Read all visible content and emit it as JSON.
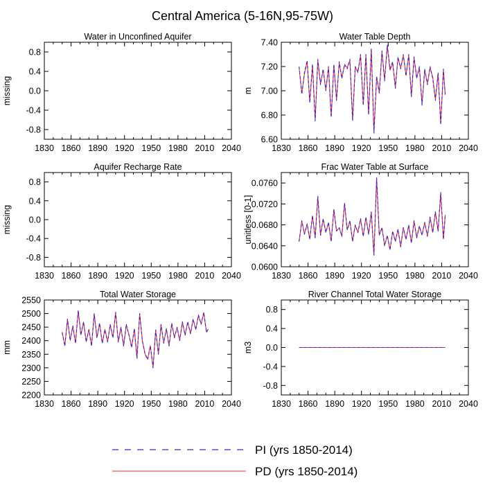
{
  "title": "Central America (5-16N,95-75W)",
  "colors": {
    "pi": "#2b2bd6",
    "pd": "#ff2a2a",
    "axis": "#000000"
  },
  "legend": {
    "pi_label": "PI (yrs 1850-2014)",
    "pd_label": "PD (yrs 1850-2014)"
  },
  "chart_data": [
    {
      "id": "p1",
      "type": "line",
      "title": "Water in Unconfined Aquifer",
      "ylabel": "missing",
      "xlabel": "",
      "xlim": [
        1830,
        2040
      ],
      "ylim": [
        -1.0,
        1.0
      ],
      "xticks": [
        "1830",
        "1860",
        "1890",
        "1920",
        "1950",
        "1980",
        "2010",
        "2040"
      ],
      "yticks": [
        "0.8",
        "0.4",
        "0.0",
        "-0.4",
        "-0.8"
      ],
      "series": []
    },
    {
      "id": "p2",
      "type": "line",
      "title": "Water Table Depth",
      "ylabel": "m",
      "xlabel": "",
      "xlim": [
        1830,
        2040
      ],
      "ylim": [
        6.6,
        7.4
      ],
      "xticks": [
        "1830",
        "1860",
        "1890",
        "1920",
        "1950",
        "1980",
        "2010",
        "2040"
      ],
      "yticks": [
        "7.40",
        "7.20",
        "7.00",
        "6.80",
        "6.60"
      ],
      "series": [
        {
          "name": "PI",
          "x": [
            1850,
            1853,
            1856,
            1859,
            1862,
            1865,
            1868,
            1871,
            1874,
            1877,
            1880,
            1883,
            1886,
            1889,
            1892,
            1895,
            1898,
            1901,
            1904,
            1907,
            1910,
            1913,
            1916,
            1919,
            1922,
            1925,
            1928,
            1931,
            1934,
            1937,
            1940,
            1943,
            1946,
            1949,
            1952,
            1955,
            1958,
            1961,
            1964,
            1967,
            1970,
            1973,
            1976,
            1979,
            1982,
            1985,
            1988,
            1991,
            1994,
            1997,
            2000,
            2003,
            2006,
            2009,
            2012,
            2014
          ],
          "values": [
            7.2,
            6.97,
            7.15,
            7.25,
            6.9,
            7.22,
            6.75,
            7.26,
            7.05,
            7.18,
            7.0,
            7.2,
            6.78,
            7.22,
            6.92,
            7.24,
            7.1,
            7.22,
            7.18,
            7.26,
            6.75,
            7.2,
            7.15,
            7.3,
            6.88,
            7.3,
            6.8,
            7.35,
            6.65,
            7.12,
            6.98,
            7.33,
            7.08,
            7.38,
            7.18,
            7.24,
            7.02,
            7.28,
            7.18,
            7.3,
            7.12,
            7.3,
            6.95,
            7.28,
            7.1,
            7.2,
            6.88,
            7.18,
            7.05,
            7.2,
            7.1,
            6.92,
            7.15,
            6.72,
            7.18,
            6.96
          ]
        },
        {
          "name": "PD",
          "x": [
            1850,
            1853,
            1856,
            1859,
            1862,
            1865,
            1868,
            1871,
            1874,
            1877,
            1880,
            1883,
            1886,
            1889,
            1892,
            1895,
            1898,
            1901,
            1904,
            1907,
            1910,
            1913,
            1916,
            1919,
            1922,
            1925,
            1928,
            1931,
            1934,
            1937,
            1940,
            1943,
            1946,
            1949,
            1952,
            1955,
            1958,
            1961,
            1964,
            1967,
            1970,
            1973,
            1976,
            1979,
            1982,
            1985,
            1988,
            1991,
            1994,
            1997,
            2000,
            2003,
            2006,
            2009,
            2012,
            2014
          ],
          "values": [
            7.19,
            6.98,
            7.14,
            7.24,
            6.91,
            7.21,
            6.76,
            7.25,
            7.06,
            7.17,
            7.01,
            7.19,
            6.79,
            7.21,
            6.93,
            7.23,
            7.11,
            7.21,
            7.19,
            7.25,
            6.76,
            7.19,
            7.16,
            7.29,
            6.89,
            7.29,
            6.81,
            7.34,
            6.66,
            7.11,
            6.99,
            7.32,
            7.09,
            7.37,
            7.17,
            7.23,
            7.03,
            7.27,
            7.19,
            7.29,
            7.13,
            7.29,
            6.96,
            7.27,
            7.11,
            7.19,
            6.89,
            7.17,
            7.06,
            7.19,
            7.11,
            6.93,
            7.14,
            6.73,
            7.17,
            6.97
          ]
        }
      ]
    },
    {
      "id": "p3",
      "type": "line",
      "title": "Aquifer Recharge Rate",
      "ylabel": "missing",
      "xlabel": "",
      "xlim": [
        1830,
        2040
      ],
      "ylim": [
        -1.0,
        1.0
      ],
      "xticks": [
        "1830",
        "1860",
        "1890",
        "1920",
        "1950",
        "1980",
        "2010",
        "2040"
      ],
      "yticks": [
        "0.8",
        "0.4",
        "0.0",
        "-0.4",
        "-0.8"
      ],
      "series": []
    },
    {
      "id": "p4",
      "type": "line",
      "title": "Frac Water Table at Surface",
      "ylabel": "unitless [0-1]",
      "xlabel": "",
      "xlim": [
        1830,
        2040
      ],
      "ylim": [
        0.06,
        0.078
      ],
      "xticks": [
        "1830",
        "1860",
        "1890",
        "1920",
        "1950",
        "1980",
        "2010",
        "2040"
      ],
      "yticks": [
        "0.0760",
        "0.0720",
        "0.0680",
        "0.0640",
        "0.0600"
      ],
      "series": [
        {
          "name": "PI",
          "x": [
            1850,
            1853,
            1856,
            1859,
            1862,
            1865,
            1868,
            1871,
            1874,
            1877,
            1880,
            1883,
            1886,
            1889,
            1892,
            1895,
            1898,
            1901,
            1904,
            1907,
            1910,
            1913,
            1916,
            1919,
            1922,
            1925,
            1928,
            1931,
            1934,
            1937,
            1940,
            1943,
            1946,
            1949,
            1952,
            1955,
            1958,
            1961,
            1964,
            1967,
            1970,
            1973,
            1976,
            1979,
            1982,
            1985,
            1988,
            1991,
            1994,
            1997,
            2000,
            2003,
            2006,
            2009,
            2012,
            2014
          ],
          "values": [
            0.0648,
            0.0688,
            0.0662,
            0.0682,
            0.0652,
            0.0698,
            0.0655,
            0.0735,
            0.066,
            0.0692,
            0.0665,
            0.0685,
            0.0648,
            0.071,
            0.0668,
            0.0675,
            0.0658,
            0.0722,
            0.067,
            0.0688,
            0.0648,
            0.068,
            0.0665,
            0.0692,
            0.0658,
            0.0695,
            0.0662,
            0.0705,
            0.0622,
            0.077,
            0.066,
            0.0675,
            0.064,
            0.066,
            0.0632,
            0.0668,
            0.0648,
            0.0672,
            0.0638,
            0.0675,
            0.0652,
            0.068,
            0.0645,
            0.0688,
            0.0655,
            0.0678,
            0.066,
            0.0685,
            0.0658,
            0.0695,
            0.0665,
            0.0705,
            0.0668,
            0.0742,
            0.0652,
            0.07
          ]
        },
        {
          "name": "PD",
          "x": [
            1850,
            1853,
            1856,
            1859,
            1862,
            1865,
            1868,
            1871,
            1874,
            1877,
            1880,
            1883,
            1886,
            1889,
            1892,
            1895,
            1898,
            1901,
            1904,
            1907,
            1910,
            1913,
            1916,
            1919,
            1922,
            1925,
            1928,
            1931,
            1934,
            1937,
            1940,
            1943,
            1946,
            1949,
            1952,
            1955,
            1958,
            1961,
            1964,
            1967,
            1970,
            1973,
            1976,
            1979,
            1982,
            1985,
            1988,
            1991,
            1994,
            1997,
            2000,
            2003,
            2006,
            2009,
            2012,
            2014
          ],
          "values": [
            0.0649,
            0.0687,
            0.0663,
            0.0681,
            0.0653,
            0.0697,
            0.0656,
            0.0733,
            0.0661,
            0.0691,
            0.0666,
            0.0684,
            0.0649,
            0.0709,
            0.0669,
            0.0674,
            0.0659,
            0.0721,
            0.0671,
            0.0687,
            0.0649,
            0.0679,
            0.0666,
            0.0691,
            0.0659,
            0.0694,
            0.0663,
            0.0704,
            0.0623,
            0.0768,
            0.0661,
            0.0674,
            0.0641,
            0.0659,
            0.0633,
            0.0667,
            0.0649,
            0.0671,
            0.0639,
            0.0674,
            0.0653,
            0.0679,
            0.0646,
            0.0687,
            0.0656,
            0.0677,
            0.0661,
            0.0684,
            0.0659,
            0.0694,
            0.0666,
            0.0704,
            0.0669,
            0.074,
            0.0653,
            0.0699
          ]
        }
      ]
    },
    {
      "id": "p5",
      "type": "line",
      "title": "Total Water Storage",
      "ylabel": "mm",
      "xlabel": "",
      "xlim": [
        1830,
        2040
      ],
      "ylim": [
        2200,
        2550
      ],
      "xticks": [
        "1830",
        "1860",
        "1890",
        "1920",
        "1950",
        "1980",
        "2010",
        "2040"
      ],
      "yticks": [
        "2550",
        "2500",
        "2450",
        "2400",
        "2350",
        "2300",
        "2250",
        "2200"
      ],
      "series": [
        {
          "name": "PI",
          "x": [
            1850,
            1853,
            1856,
            1859,
            1862,
            1865,
            1868,
            1871,
            1874,
            1877,
            1880,
            1883,
            1886,
            1889,
            1892,
            1895,
            1898,
            1901,
            1904,
            1907,
            1910,
            1913,
            1916,
            1919,
            1922,
            1925,
            1928,
            1931,
            1934,
            1937,
            1940,
            1943,
            1946,
            1949,
            1952,
            1955,
            1958,
            1961,
            1964,
            1967,
            1970,
            1973,
            1976,
            1979,
            1982,
            1985,
            1988,
            1991,
            1994,
            1997,
            2000,
            2003,
            2006,
            2009,
            2012,
            2014
          ],
          "values": [
            2430,
            2380,
            2480,
            2400,
            2455,
            2390,
            2512,
            2420,
            2470,
            2395,
            2440,
            2380,
            2500,
            2410,
            2465,
            2390,
            2440,
            2395,
            2460,
            2410,
            2505,
            2395,
            2450,
            2380,
            2460,
            2420,
            2375,
            2445,
            2335,
            2500,
            2400,
            2350,
            2330,
            2380,
            2300,
            2440,
            2350,
            2460,
            2390,
            2445,
            2380,
            2465,
            2410,
            2450,
            2400,
            2470,
            2420,
            2470,
            2425,
            2480,
            2440,
            2495,
            2460,
            2505,
            2430,
            2445
          ]
        },
        {
          "name": "PD",
          "x": [
            1850,
            1853,
            1856,
            1859,
            1862,
            1865,
            1868,
            1871,
            1874,
            1877,
            1880,
            1883,
            1886,
            1889,
            1892,
            1895,
            1898,
            1901,
            1904,
            1907,
            1910,
            1913,
            1916,
            1919,
            1922,
            1925,
            1928,
            1931,
            1934,
            1937,
            1940,
            1943,
            1946,
            1949,
            1952,
            1955,
            1958,
            1961,
            1964,
            1967,
            1970,
            1973,
            1976,
            1979,
            1982,
            1985,
            1988,
            1991,
            1994,
            1997,
            2000,
            2003,
            2006,
            2009,
            2012,
            2014
          ],
          "values": [
            2432,
            2382,
            2478,
            2402,
            2453,
            2392,
            2510,
            2422,
            2468,
            2397,
            2442,
            2382,
            2498,
            2412,
            2463,
            2392,
            2442,
            2397,
            2458,
            2412,
            2503,
            2397,
            2448,
            2382,
            2458,
            2422,
            2377,
            2443,
            2337,
            2498,
            2402,
            2352,
            2332,
            2382,
            2302,
            2438,
            2352,
            2458,
            2392,
            2443,
            2382,
            2463,
            2412,
            2448,
            2402,
            2468,
            2422,
            2468,
            2427,
            2478,
            2442,
            2493,
            2462,
            2503,
            2432,
            2443
          ]
        }
      ]
    },
    {
      "id": "p6",
      "type": "line",
      "title": "River Channel Total Water Storage",
      "ylabel": "m3",
      "xlabel": "",
      "xlim": [
        1830,
        2040
      ],
      "ylim": [
        -1.0,
        1.0
      ],
      "xticks": [
        "1830",
        "1860",
        "1890",
        "1920",
        "1950",
        "1980",
        "2010",
        "2040"
      ],
      "yticks": [
        "0.8",
        "0.4",
        "0.0",
        "-0.4",
        "-0.8"
      ],
      "series": [
        {
          "name": "PI",
          "x": [
            1850,
            2014
          ],
          "values": [
            0.0,
            0.0
          ]
        },
        {
          "name": "PD",
          "x": [
            1850,
            2014
          ],
          "values": [
            0.0,
            0.0
          ]
        }
      ]
    }
  ]
}
